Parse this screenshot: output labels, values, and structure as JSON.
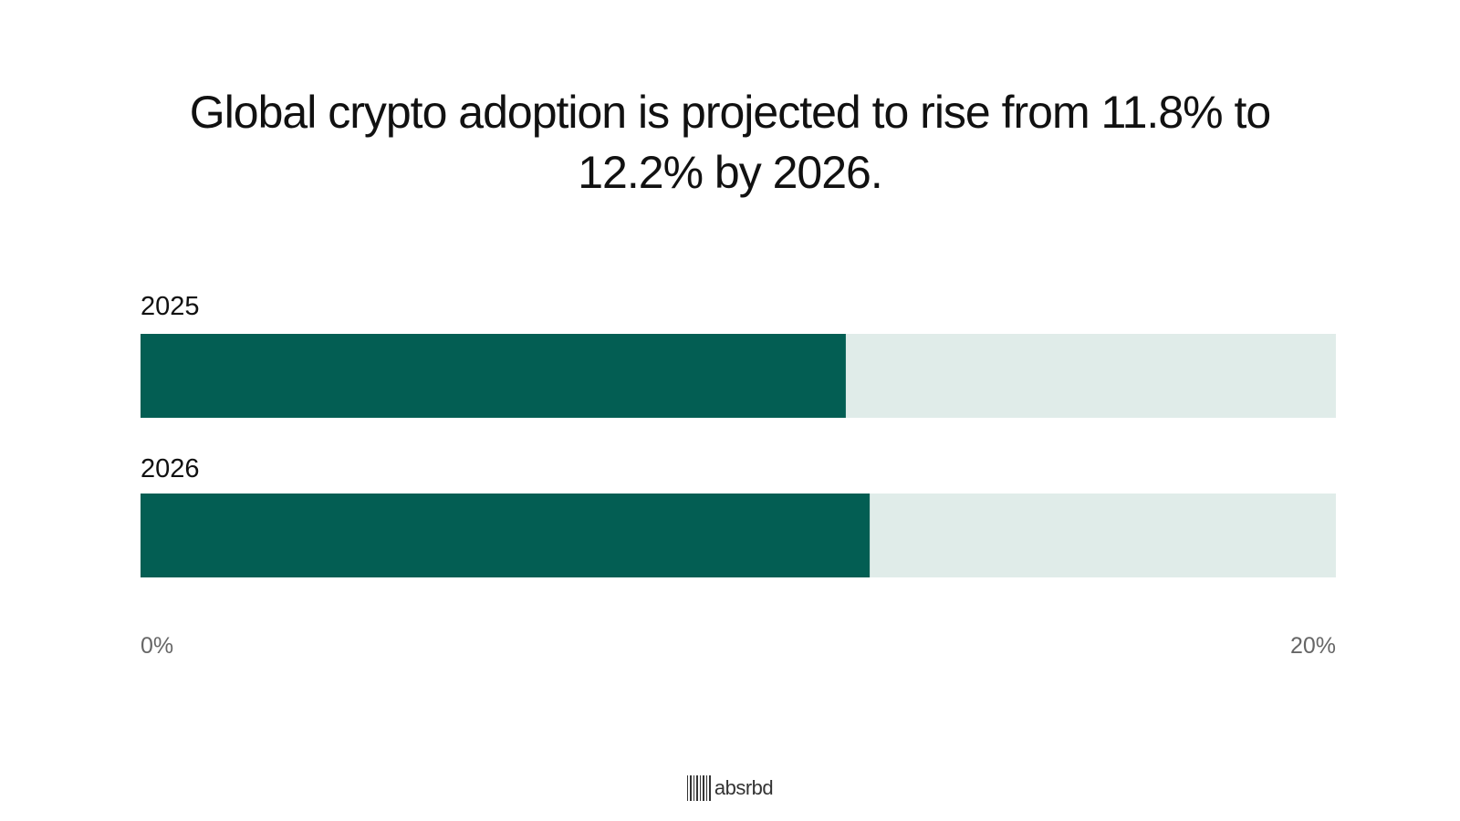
{
  "title": "Global crypto adoption is projected to rise from 11.8% to 12.2% by 2026.",
  "brand": {
    "name": "absrbd",
    "icon": "barcode-logo-icon"
  },
  "colors": {
    "bar_fill": "#035e53",
    "bar_track": "#e0ece9",
    "label_text": "#111111",
    "axis_text": "#666666"
  },
  "chart_data": {
    "type": "bar",
    "orientation": "horizontal",
    "categories": [
      "2025",
      "2026"
    ],
    "values": [
      11.8,
      12.2
    ],
    "unit": "%",
    "xlim": [
      0,
      20
    ],
    "tick_labels": [
      "0%",
      "20%"
    ],
    "title": "Global crypto adoption is projected to rise from 11.8% to 12.2% by 2026.",
    "xlabel": "",
    "ylabel": "",
    "grid": false,
    "legend": "none"
  }
}
